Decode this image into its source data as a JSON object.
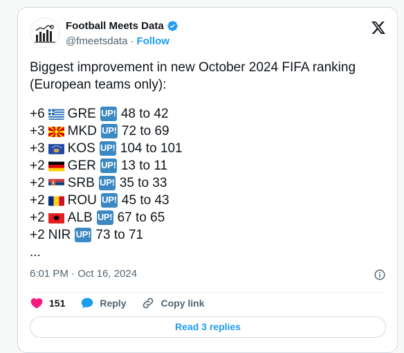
{
  "author": {
    "name": "Football Meets Data",
    "handle": "@fmeetsdata",
    "separator": "·",
    "follow_label": "Follow"
  },
  "tweet": {
    "intro": "Biggest improvement in new October 2024 FIFA ranking (European teams only):",
    "up_label": "UP!",
    "rows": [
      {
        "change": "+6",
        "code": "GRE",
        "flag": "greece-flag-icon",
        "from_to": "48 to 42"
      },
      {
        "change": "+3",
        "code": "MKD",
        "flag": "north-macedonia-flag-icon",
        "from_to": "72 to 69"
      },
      {
        "change": "+3",
        "code": "KOS",
        "flag": "kosovo-flag-icon",
        "from_to": "104 to 101"
      },
      {
        "change": "+2",
        "code": "GER",
        "flag": "germany-flag-icon",
        "from_to": "13 to 11"
      },
      {
        "change": "+2",
        "code": "SRB",
        "flag": "serbia-flag-icon",
        "from_to": "35 to 33"
      },
      {
        "change": "+2",
        "code": "ROU",
        "flag": "romania-flag-icon",
        "from_to": "45 to 43"
      },
      {
        "change": "+2",
        "code": "ALB",
        "flag": "albania-flag-icon",
        "from_to": "67 to 65"
      },
      {
        "change": "+2",
        "code": "NIR",
        "flag": "",
        "from_to": "73 to 71"
      }
    ],
    "ellipsis": "..."
  },
  "meta": {
    "timestamp": "6:01 PM · Oct 16, 2024"
  },
  "actions": {
    "likes": "151",
    "reply_label": "Reply",
    "copy_link_label": "Copy link"
  },
  "footer": {
    "read_replies_label": "Read 3 replies"
  },
  "colors": {
    "accent": "#1d9bf0",
    "like": "#f91880",
    "up_badge": "#3b88c3"
  }
}
